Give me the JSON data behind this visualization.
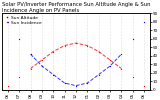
{
  "title": "Solar PV/Inverter Performance Sun Altitude Angle & Sun Incidence Angle on PV Panels",
  "legend": [
    "Sun Altitude",
    "Sun Incidence"
  ],
  "line_colors": [
    "#0000ff",
    "#ff0000"
  ],
  "x_values": [
    5.5,
    6,
    7,
    8,
    9,
    10,
    11,
    12,
    13,
    14,
    15,
    16,
    17,
    18,
    18.5
  ],
  "altitude_values": [
    90,
    80,
    60,
    42,
    28,
    18,
    8,
    5,
    8,
    18,
    28,
    42,
    60,
    80,
    90
  ],
  "incidence_values": [
    0,
    5,
    15,
    25,
    35,
    45,
    52,
    55,
    52,
    45,
    35,
    25,
    15,
    5,
    0
  ],
  "xlim": [
    5.5,
    18.5
  ],
  "ylim": [
    0,
    90
  ],
  "ytick_right_vals": [
    0,
    10,
    20,
    30,
    40,
    50,
    60,
    70,
    80,
    90
  ],
  "ytick_right_labels": [
    "0",
    "10",
    "20",
    "30",
    "40",
    "50",
    "60",
    "70",
    "80",
    "90"
  ],
  "x_tick_positions": [
    6,
    7,
    8,
    9,
    10,
    11,
    12,
    13,
    14,
    15,
    16,
    17,
    18
  ],
  "background_color": "#ffffff",
  "grid_color": "#999999",
  "title_fontsize": 3.8,
  "legend_fontsize": 3.2,
  "tick_fontsize": 3.0
}
